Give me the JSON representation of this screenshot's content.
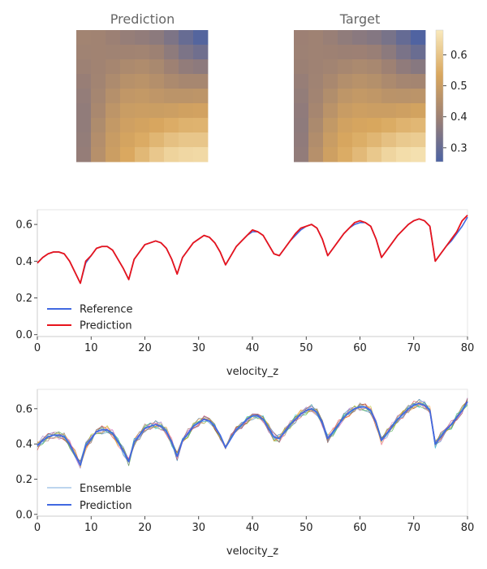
{
  "heatmaps": {
    "prediction_title": "Prediction",
    "target_title": "Target",
    "colorbar": {
      "ticks": [
        0.3,
        0.4,
        0.5,
        0.6
      ],
      "range": [
        0.255,
        0.68
      ],
      "colors": [
        "#4c62a3",
        "#9c8074",
        "#d9a75e",
        "#f9e9bc"
      ]
    }
  },
  "legend1": {
    "reference": "Reference",
    "prediction": "Prediction"
  },
  "legend2": {
    "ensemble": "Ensemble",
    "prediction": "Prediction"
  },
  "chart_data": [
    {
      "type": "heatmap",
      "title": "Prediction",
      "grid_size": [
        9,
        9
      ],
      "corner_values": {
        "top_left": 0.4,
        "top_right": 0.28,
        "bottom_left": 0.38,
        "bottom_right": 0.65
      }
    },
    {
      "type": "heatmap",
      "title": "Target",
      "grid_size": [
        9,
        9
      ],
      "corner_values": {
        "top_left": 0.39,
        "top_right": 0.27,
        "bottom_left": 0.38,
        "bottom_right": 0.66
      }
    },
    {
      "type": "line",
      "xlabel": "velocity_z",
      "xlim": [
        0,
        80
      ],
      "ylim": [
        -0.01,
        0.68
      ],
      "xticks": [
        0,
        10,
        20,
        30,
        40,
        50,
        60,
        70,
        80
      ],
      "yticks": [
        0.0,
        0.2,
        0.4,
        0.6
      ],
      "legend_position": "lower left",
      "series": [
        {
          "name": "Reference",
          "color": "#4169e1",
          "x": [
            0,
            1,
            2,
            3,
            4,
            5,
            6,
            7,
            8,
            9,
            10,
            11,
            12,
            13,
            14,
            15,
            16,
            17,
            18,
            19,
            20,
            21,
            22,
            23,
            24,
            25,
            26,
            27,
            28,
            29,
            30,
            31,
            32,
            33,
            34,
            35,
            36,
            37,
            38,
            39,
            40,
            41,
            42,
            43,
            44,
            45,
            46,
            47,
            48,
            49,
            50,
            51,
            52,
            53,
            54,
            55,
            56,
            57,
            58,
            59,
            60,
            61,
            62,
            63,
            64,
            65,
            66,
            67,
            68,
            69,
            70,
            71,
            72,
            73,
            74,
            75,
            76,
            77,
            78,
            79,
            80
          ],
          "y": [
            0.39,
            0.42,
            0.44,
            0.45,
            0.45,
            0.44,
            0.4,
            0.34,
            0.28,
            0.39,
            0.43,
            0.47,
            0.48,
            0.48,
            0.46,
            0.41,
            0.36,
            0.3,
            0.41,
            0.45,
            0.49,
            0.5,
            0.51,
            0.5,
            0.47,
            0.41,
            0.33,
            0.42,
            0.46,
            0.5,
            0.52,
            0.54,
            0.53,
            0.5,
            0.45,
            0.38,
            0.43,
            0.48,
            0.51,
            0.54,
            0.56,
            0.56,
            0.54,
            0.49,
            0.44,
            0.43,
            0.47,
            0.51,
            0.54,
            0.57,
            0.59,
            0.6,
            0.58,
            0.52,
            0.43,
            0.47,
            0.51,
            0.55,
            0.58,
            0.6,
            0.61,
            0.61,
            0.59,
            0.52,
            0.42,
            0.46,
            0.5,
            0.54,
            0.57,
            0.6,
            0.62,
            0.63,
            0.62,
            0.59,
            0.4,
            0.44,
            0.48,
            0.51,
            0.55,
            0.59,
            0.64
          ]
        },
        {
          "name": "Prediction",
          "color": "#e8141c",
          "x": [
            0,
            1,
            2,
            3,
            4,
            5,
            6,
            7,
            8,
            9,
            10,
            11,
            12,
            13,
            14,
            15,
            16,
            17,
            18,
            19,
            20,
            21,
            22,
            23,
            24,
            25,
            26,
            27,
            28,
            29,
            30,
            31,
            32,
            33,
            34,
            35,
            36,
            37,
            38,
            39,
            40,
            41,
            42,
            43,
            44,
            45,
            46,
            47,
            48,
            49,
            50,
            51,
            52,
            53,
            54,
            55,
            56,
            57,
            58,
            59,
            60,
            61,
            62,
            63,
            64,
            65,
            66,
            67,
            68,
            69,
            70,
            71,
            72,
            73,
            74,
            75,
            76,
            77,
            78,
            79,
            80
          ],
          "y": [
            0.39,
            0.42,
            0.44,
            0.45,
            0.45,
            0.44,
            0.4,
            0.34,
            0.28,
            0.4,
            0.43,
            0.47,
            0.48,
            0.48,
            0.46,
            0.41,
            0.36,
            0.3,
            0.41,
            0.45,
            0.49,
            0.5,
            0.51,
            0.5,
            0.47,
            0.41,
            0.33,
            0.42,
            0.46,
            0.5,
            0.52,
            0.54,
            0.53,
            0.5,
            0.45,
            0.38,
            0.43,
            0.48,
            0.51,
            0.54,
            0.57,
            0.56,
            0.54,
            0.49,
            0.44,
            0.43,
            0.47,
            0.51,
            0.55,
            0.58,
            0.59,
            0.6,
            0.58,
            0.52,
            0.43,
            0.47,
            0.51,
            0.55,
            0.58,
            0.61,
            0.62,
            0.61,
            0.59,
            0.52,
            0.42,
            0.46,
            0.5,
            0.54,
            0.57,
            0.6,
            0.62,
            0.63,
            0.62,
            0.59,
            0.4,
            0.44,
            0.48,
            0.52,
            0.56,
            0.62,
            0.65
          ]
        }
      ]
    },
    {
      "type": "line",
      "xlabel": "velocity_z",
      "xlim": [
        0,
        80
      ],
      "ylim": [
        -0.01,
        0.71
      ],
      "xticks": [
        0,
        10,
        20,
        30,
        40,
        50,
        60,
        70,
        80
      ],
      "yticks": [
        0.0,
        0.2,
        0.4,
        0.6
      ],
      "legend_position": "lower left",
      "ensemble_members": 10,
      "ensemble_colors": [
        "#1f77b4",
        "#ff7f0e",
        "#2ca02c",
        "#d62728",
        "#9467bd",
        "#8c564b",
        "#e377c2",
        "#7f7f7f",
        "#bcbd22",
        "#17becf"
      ],
      "series": [
        {
          "name": "Prediction",
          "color": "#4169e1",
          "x": [
            0,
            1,
            2,
            3,
            4,
            5,
            6,
            7,
            8,
            9,
            10,
            11,
            12,
            13,
            14,
            15,
            16,
            17,
            18,
            19,
            20,
            21,
            22,
            23,
            24,
            25,
            26,
            27,
            28,
            29,
            30,
            31,
            32,
            33,
            34,
            35,
            36,
            37,
            38,
            39,
            40,
            41,
            42,
            43,
            44,
            45,
            46,
            47,
            48,
            49,
            50,
            51,
            52,
            53,
            54,
            55,
            56,
            57,
            58,
            59,
            60,
            61,
            62,
            63,
            64,
            65,
            66,
            67,
            68,
            69,
            70,
            71,
            72,
            73,
            74,
            75,
            76,
            77,
            78,
            79,
            80
          ],
          "y": [
            0.39,
            0.42,
            0.44,
            0.45,
            0.45,
            0.44,
            0.4,
            0.34,
            0.28,
            0.39,
            0.43,
            0.47,
            0.48,
            0.48,
            0.46,
            0.41,
            0.36,
            0.3,
            0.41,
            0.45,
            0.49,
            0.5,
            0.51,
            0.5,
            0.47,
            0.41,
            0.33,
            0.42,
            0.46,
            0.5,
            0.52,
            0.54,
            0.53,
            0.5,
            0.45,
            0.38,
            0.43,
            0.48,
            0.51,
            0.54,
            0.56,
            0.56,
            0.54,
            0.49,
            0.44,
            0.43,
            0.47,
            0.51,
            0.54,
            0.57,
            0.59,
            0.6,
            0.58,
            0.52,
            0.43,
            0.47,
            0.51,
            0.55,
            0.58,
            0.6,
            0.61,
            0.61,
            0.59,
            0.52,
            0.42,
            0.46,
            0.5,
            0.54,
            0.57,
            0.6,
            0.62,
            0.63,
            0.62,
            0.59,
            0.4,
            0.44,
            0.48,
            0.51,
            0.55,
            0.59,
            0.64
          ]
        },
        {
          "name": "Ensemble",
          "color": "#4f8fd0",
          "note_shape": "thin lines, one per member, spread around Prediction"
        }
      ]
    }
  ]
}
